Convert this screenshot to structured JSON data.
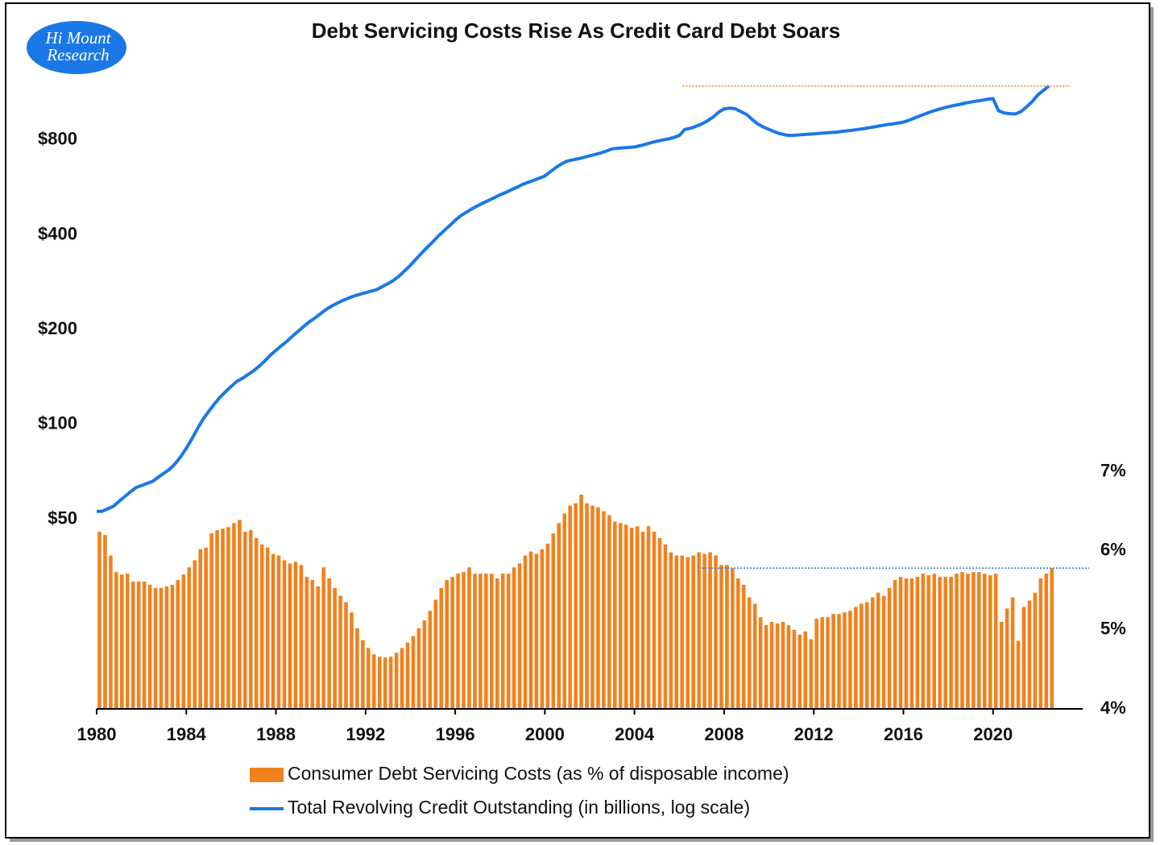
{
  "chart_data": {
    "type": "combo",
    "title": "Debt Servicing Costs Rise As Credit Card Debt Soars",
    "logo": [
      "Hi Mount",
      "Research"
    ],
    "x": [
      1980,
      1980.25,
      1980.5,
      1980.75,
      1981,
      1981.25,
      1981.5,
      1981.75,
      1982,
      1982.25,
      1982.5,
      1982.75,
      1983,
      1983.25,
      1983.5,
      1983.75,
      1984,
      1984.25,
      1984.5,
      1984.75,
      1985,
      1985.25,
      1985.5,
      1985.75,
      1986,
      1986.25,
      1986.5,
      1986.75,
      1987,
      1987.25,
      1987.5,
      1987.75,
      1988,
      1988.25,
      1988.5,
      1988.75,
      1989,
      1989.25,
      1989.5,
      1989.75,
      1990,
      1990.25,
      1990.5,
      1990.75,
      1991,
      1991.25,
      1991.5,
      1991.75,
      1992,
      1992.25,
      1992.5,
      1992.75,
      1993,
      1993.25,
      1993.5,
      1993.75,
      1994,
      1994.25,
      1994.5,
      1994.75,
      1995,
      1995.25,
      1995.5,
      1995.75,
      1996,
      1996.25,
      1996.5,
      1996.75,
      1997,
      1997.25,
      1997.5,
      1997.75,
      1998,
      1998.25,
      1998.5,
      1998.75,
      1999,
      1999.25,
      1999.5,
      1999.75,
      2000,
      2000.25,
      2000.5,
      2000.75,
      2001,
      2001.25,
      2001.5,
      2001.75,
      2002,
      2002.25,
      2002.5,
      2002.75,
      2003,
      2003.25,
      2003.5,
      2003.75,
      2004,
      2004.25,
      2004.5,
      2004.75,
      2005,
      2005.25,
      2005.5,
      2005.75,
      2006,
      2006.25,
      2006.5,
      2006.75,
      2007,
      2007.25,
      2007.5,
      2007.75,
      2008,
      2008.25,
      2008.5,
      2008.75,
      2009,
      2009.25,
      2009.5,
      2009.75,
      2010,
      2010.25,
      2010.5,
      2010.75,
      2011,
      2011.25,
      2011.5,
      2011.75,
      2012,
      2012.25,
      2012.5,
      2012.75,
      2013,
      2013.25,
      2013.5,
      2013.75,
      2014,
      2014.25,
      2014.5,
      2014.75,
      2015,
      2015.25,
      2015.5,
      2015.75,
      2016,
      2016.25,
      2016.5,
      2016.75,
      2017,
      2017.25,
      2017.5,
      2017.75,
      2018,
      2018.25,
      2018.5,
      2018.75,
      2019,
      2019.25,
      2019.5,
      2019.75,
      2020,
      2020.25,
      2020.5,
      2020.75,
      2021,
      2021.25,
      2021.5,
      2021.75,
      2022,
      2022.25,
      2022.5
    ],
    "series": [
      {
        "name": "Consumer Debt Servicing Costs (as % of disposable income)",
        "type": "bar",
        "axis": "y2",
        "color": "#f0821e",
        "values": [
          6.24,
          6.2,
          5.94,
          5.73,
          5.7,
          5.71,
          5.61,
          5.61,
          5.61,
          5.57,
          5.53,
          5.53,
          5.55,
          5.57,
          5.63,
          5.7,
          5.79,
          5.88,
          6.02,
          6.04,
          6.22,
          6.26,
          6.28,
          6.3,
          6.35,
          6.39,
          6.24,
          6.26,
          6.16,
          6.08,
          6.04,
          5.96,
          5.94,
          5.88,
          5.84,
          5.86,
          5.82,
          5.67,
          5.63,
          5.55,
          5.79,
          5.65,
          5.53,
          5.43,
          5.35,
          5.22,
          5.02,
          4.87,
          4.77,
          4.69,
          4.66,
          4.65,
          4.66,
          4.71,
          4.77,
          4.84,
          4.92,
          5.02,
          5.12,
          5.24,
          5.38,
          5.53,
          5.63,
          5.67,
          5.71,
          5.73,
          5.79,
          5.71,
          5.71,
          5.71,
          5.71,
          5.65,
          5.71,
          5.71,
          5.79,
          5.84,
          5.94,
          5.99,
          5.96,
          6.02,
          6.09,
          6.22,
          6.35,
          6.47,
          6.57,
          6.6,
          6.71,
          6.6,
          6.57,
          6.55,
          6.5,
          6.45,
          6.37,
          6.35,
          6.33,
          6.29,
          6.31,
          6.24,
          6.31,
          6.24,
          6.16,
          6.08,
          5.98,
          5.94,
          5.94,
          5.92,
          5.94,
          5.98,
          5.96,
          5.98,
          5.94,
          5.82,
          5.82,
          5.78,
          5.65,
          5.57,
          5.41,
          5.33,
          5.16,
          5.06,
          5.1,
          5.08,
          5.1,
          5.06,
          5.0,
          4.94,
          4.98,
          4.88,
          5.14,
          5.16,
          5.16,
          5.2,
          5.2,
          5.22,
          5.24,
          5.29,
          5.33,
          5.35,
          5.41,
          5.47,
          5.43,
          5.53,
          5.63,
          5.67,
          5.65,
          5.65,
          5.67,
          5.71,
          5.69,
          5.71,
          5.67,
          5.67,
          5.67,
          5.71,
          5.73,
          5.71,
          5.73,
          5.73,
          5.71,
          5.69,
          5.71,
          5.1,
          5.27,
          5.41,
          4.86,
          5.29,
          5.37,
          5.47,
          5.65,
          5.71,
          5.78
        ]
      },
      {
        "name": "Total Revolving Credit Outstanding (in billions, log scale)",
        "type": "line",
        "axis": "y",
        "color": "#1a78e6",
        "values": [
          53,
          53,
          54,
          55,
          57,
          59,
          61,
          63,
          64,
          65,
          66,
          68,
          70,
          72,
          75,
          79,
          84,
          90,
          97,
          104,
          110,
          116,
          122,
          127,
          132,
          137,
          140,
          144,
          148,
          153,
          159,
          166,
          172,
          178,
          184,
          191,
          198,
          205,
          212,
          218,
          225,
          232,
          238,
          243,
          248,
          252,
          256,
          259,
          262,
          265,
          268,
          274,
          280,
          287,
          296,
          308,
          320,
          335,
          350,
          365,
          380,
          397,
          412,
          428,
          445,
          460,
          472,
          484,
          495,
          505,
          515,
          525,
          536,
          545,
          556,
          566,
          578,
          587,
          596,
          605,
          615,
          635,
          655,
          672,
          686,
          692,
          698,
          705,
          713,
          720,
          728,
          738,
          750,
          753,
          756,
          758,
          760,
          768,
          776,
          785,
          793,
          800,
          806,
          815,
          827,
          865,
          872,
          885,
          900,
          920,
          945,
          980,
          1005,
          1010,
          1005,
          985,
          965,
          930,
          900,
          880,
          865,
          850,
          838,
          830,
          827,
          830,
          832,
          835,
          837,
          840,
          843,
          845,
          847,
          852,
          856,
          860,
          865,
          870,
          876,
          882,
          889,
          895,
          900,
          906,
          912,
          925,
          940,
          955,
          970,
          985,
          998,
          1010,
          1020,
          1030,
          1038,
          1048,
          1056,
          1063,
          1070,
          1078,
          1083,
          990,
          975,
          970,
          968,
          985,
          1020,
          1060,
          1113,
          1150,
          1188
        ]
      }
    ],
    "xlim": [
      1980,
      2024
    ],
    "xticks": [
      1980,
      1984,
      1988,
      1992,
      1996,
      2000,
      2004,
      2008,
      2012,
      2016,
      2020
    ],
    "log_y": true,
    "ylim": [
      12.5,
      1350
    ],
    "yticks": [
      {
        "value": 50,
        "label": "$50"
      },
      {
        "value": 100,
        "label": "$100"
      },
      {
        "value": 200,
        "label": "$200"
      },
      {
        "value": 400,
        "label": "$400"
      },
      {
        "value": 800,
        "label": "$800"
      }
    ],
    "y2lim": [
      4,
      12.1
    ],
    "y2ticks": [
      {
        "value": 4,
        "label": "4%"
      },
      {
        "value": 5,
        "label": "5%"
      },
      {
        "value": 6,
        "label": "6%"
      },
      {
        "value": 7,
        "label": "7%"
      }
    ],
    "ref_lines": [
      {
        "axis": "y",
        "value": 1188,
        "x": [
          2006.15,
          2023.45
        ],
        "color": "#f0821e"
      },
      {
        "axis": "y2",
        "value": 5.78,
        "x": [
          2007,
          2024.3
        ],
        "color": "#1a78e6"
      }
    ],
    "grid": false
  }
}
